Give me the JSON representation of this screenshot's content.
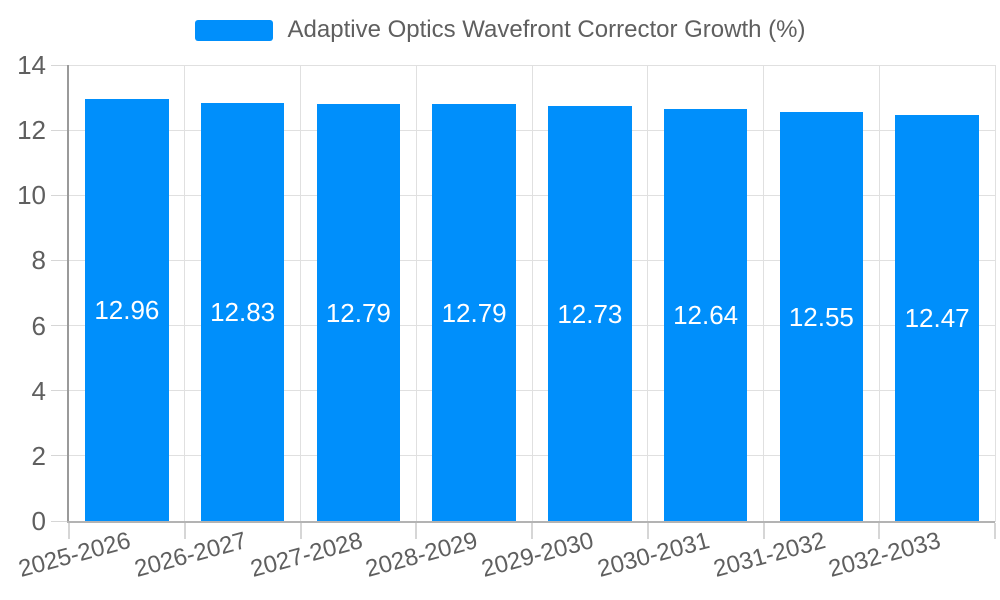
{
  "legend": {
    "label": "Adaptive Optics Wavefront Corrector Growth (%)"
  },
  "colors": {
    "bar": "#008FFB",
    "grid": "#e0e0e0",
    "axis": "#9a9a9a",
    "axis2": "#b3b3b3",
    "tick": "#d6d6d6",
    "text": "#5f5f5f",
    "data_label": "#ffffff",
    "background": "#ffffff"
  },
  "chart_data": {
    "type": "bar",
    "title": "Adaptive Optics Wavefront Corrector Growth (%)",
    "categories": [
      "2025-2026",
      "2026-2027",
      "2027-2028",
      "2028-2029",
      "2029-2030",
      "2030-2031",
      "2031-2032",
      "2032-2033"
    ],
    "values": [
      12.96,
      12.83,
      12.79,
      12.79,
      12.73,
      12.64,
      12.55,
      12.47
    ],
    "data_labels": [
      "12.96",
      "12.83",
      "12.79",
      "12.79",
      "12.73",
      "12.64",
      "12.55",
      "12.47"
    ],
    "series": [
      {
        "name": "Adaptive Optics Wavefront Corrector Growth (%)",
        "values": [
          12.96,
          12.83,
          12.79,
          12.79,
          12.73,
          12.64,
          12.55,
          12.47
        ]
      }
    ],
    "xlabel": "",
    "ylabel": "",
    "ylim": [
      0,
      14
    ],
    "yticks": [
      0,
      2,
      4,
      6,
      8,
      10,
      12,
      14
    ],
    "ytick_labels": [
      "0",
      "2",
      "4",
      "6",
      "8",
      "10",
      "12",
      "14"
    ],
    "grid": true,
    "legend_position": "top",
    "bar_label_position": "middle",
    "xlabel_rotation_deg": -15
  }
}
